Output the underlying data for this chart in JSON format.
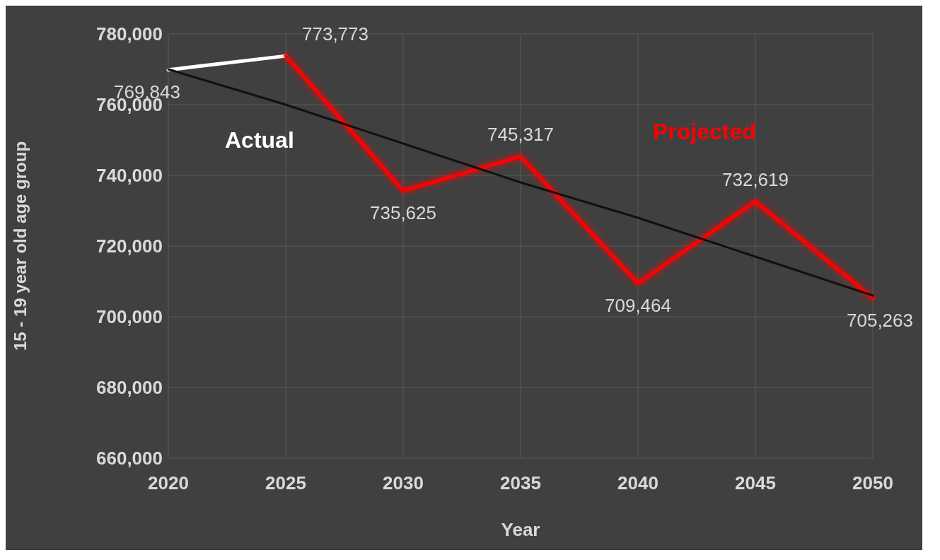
{
  "chart_data": {
    "type": "line",
    "xlabel": "Year",
    "ylabel": "15 - 19 year old age group",
    "categories": [
      "2020",
      "2025",
      "2030",
      "2035",
      "2040",
      "2045",
      "2050"
    ],
    "series": [
      {
        "name": "Actual",
        "color": "#ffffff",
        "values": [
          769843,
          773773,
          null,
          null,
          null,
          null,
          null
        ],
        "value_labels": [
          "769,843",
          null,
          null,
          null,
          null,
          null,
          null
        ]
      },
      {
        "name": "Projected",
        "color": "#ff0000",
        "values": [
          null,
          773773,
          735625,
          745317,
          709464,
          732619,
          705263
        ],
        "value_labels": [
          null,
          "773,773",
          "735,625",
          "745,317",
          "709,464",
          "732,619",
          "705,263"
        ]
      },
      {
        "type": "line",
        "color": "#111111",
        "values": [
          770000,
          760000,
          749000,
          738000,
          728000,
          717000,
          706000
        ]
      }
    ],
    "ylim": [
      660000,
      780000
    ],
    "yticks": [
      {
        "value": 660000,
        "label": "660,000"
      },
      {
        "value": 680000,
        "label": "680,000"
      },
      {
        "value": 700000,
        "label": "700,000"
      },
      {
        "value": 720000,
        "label": "720,000"
      },
      {
        "value": 740000,
        "label": "740,000"
      },
      {
        "value": 760000,
        "label": "760,000"
      },
      {
        "value": 780000,
        "label": "780,000"
      }
    ],
    "grid": true,
    "marker": "none"
  }
}
